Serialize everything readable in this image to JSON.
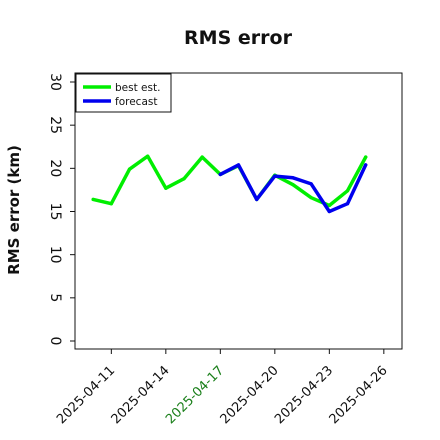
{
  "chart_data": {
    "type": "line",
    "title": "RMS error",
    "xlabel": "",
    "ylabel": "RMS error (km)",
    "ylim": [
      0,
      30
    ],
    "xlim": [
      "2025-04-09",
      "2025-04-27"
    ],
    "yticks": [
      0,
      5,
      10,
      15,
      20,
      25,
      30
    ],
    "xticks": [
      "2025-04-11",
      "2025-04-14",
      "2025-04-17",
      "2025-04-20",
      "2025-04-23",
      "2025-04-26"
    ],
    "highlight_tick": "2025-04-17",
    "highlight_color": "#1a7f1a",
    "grid": false,
    "legend_position": "top-left",
    "series": [
      {
        "name": "best est.",
        "color": "#00ee00",
        "x": [
          "2025-04-10",
          "2025-04-11",
          "2025-04-12",
          "2025-04-13",
          "2025-04-14",
          "2025-04-15",
          "2025-04-16",
          "2025-04-17",
          "2025-04-18",
          "2025-04-19",
          "2025-04-20",
          "2025-04-21",
          "2025-04-22",
          "2025-04-23",
          "2025-04-24",
          "2025-04-25"
        ],
        "values": [
          16.4,
          15.9,
          19.9,
          21.4,
          17.7,
          18.8,
          21.3,
          19.3,
          20.3,
          16.4,
          19.2,
          18.1,
          16.6,
          15.7,
          17.4,
          21.3
        ]
      },
      {
        "name": "forecast",
        "color": "#0000ee",
        "x": [
          "2025-04-17",
          "2025-04-18",
          "2025-04-19",
          "2025-04-20",
          "2025-04-21",
          "2025-04-22",
          "2025-04-23",
          "2025-04-24",
          "2025-04-25"
        ],
        "values": [
          19.3,
          20.4,
          16.4,
          19.1,
          18.9,
          18.2,
          15.0,
          15.9,
          20.4
        ]
      }
    ]
  }
}
